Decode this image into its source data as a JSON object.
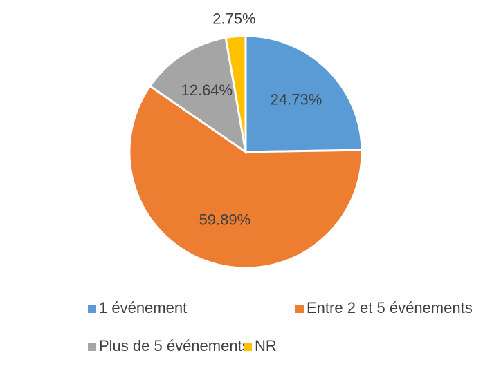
{
  "chart_data": {
    "type": "pie",
    "categories": [
      "1 événement",
      "Entre 2 et 5 événements",
      "Plus de 5 événements",
      "NR"
    ],
    "values": [
      24.73,
      59.89,
      12.64,
      2.75
    ],
    "value_labels": [
      "24.73%",
      "59.89%",
      "12.64%",
      "2.75%"
    ],
    "colors": [
      "#5b9bd5",
      "#ed7d31",
      "#a5a5a5",
      "#ffc000"
    ],
    "legend": "bottom"
  }
}
